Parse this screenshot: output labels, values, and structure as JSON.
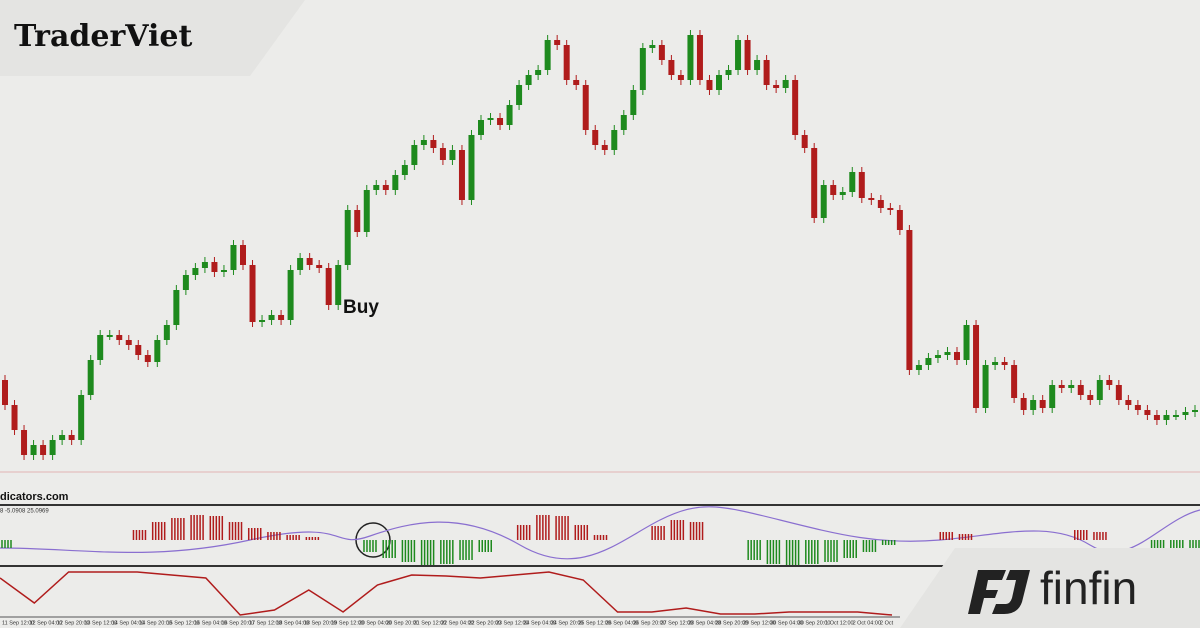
{
  "brand": "TraderViet",
  "logo": "finfin",
  "chart_data": {
    "type": "candlestick",
    "annotation": "Buy",
    "watermark": "dicators.com",
    "indicator_label": "8 -5.0908 25.0969",
    "up_color": "#1e8a1e",
    "down_color": "#b01c1c",
    "ylim": [
      0,
      500
    ],
    "open": [
      120,
      95,
      70,
      45,
      55,
      45,
      60,
      65,
      60,
      105,
      140,
      165,
      165,
      160,
      155,
      145,
      138,
      160,
      175,
      210,
      225,
      232,
      238,
      228,
      230,
      255,
      235,
      178,
      180,
      185,
      180,
      230,
      242,
      235,
      232,
      195,
      235,
      290,
      268,
      310,
      315,
      310,
      325,
      335,
      355,
      360,
      352,
      340,
      350,
      300,
      365,
      380,
      382,
      375,
      395,
      415,
      425,
      430,
      460,
      455,
      420,
      415,
      370,
      355,
      350,
      370,
      385,
      410,
      452,
      455,
      440,
      425,
      420,
      465,
      420,
      410,
      425,
      430,
      460,
      430,
      440,
      415,
      412,
      420,
      365,
      352,
      282,
      315,
      305,
      308,
      328,
      302,
      300,
      292,
      290,
      270,
      130,
      135,
      142,
      145,
      148,
      140,
      175,
      92,
      135,
      138,
      135,
      102,
      90,
      100,
      92,
      115,
      112,
      115,
      105,
      100,
      120,
      115,
      100,
      95,
      90,
      85,
      80,
      85,
      85,
      88
    ],
    "close": [
      95,
      70,
      45,
      55,
      45,
      60,
      65,
      60,
      105,
      140,
      165,
      165,
      160,
      155,
      145,
      138,
      160,
      175,
      210,
      225,
      232,
      238,
      228,
      230,
      255,
      235,
      178,
      180,
      185,
      180,
      230,
      242,
      235,
      232,
      195,
      235,
      290,
      268,
      310,
      315,
      310,
      325,
      335,
      355,
      360,
      352,
      340,
      350,
      300,
      365,
      380,
      382,
      375,
      395,
      415,
      425,
      430,
      460,
      455,
      420,
      415,
      370,
      355,
      350,
      370,
      385,
      410,
      452,
      455,
      440,
      425,
      420,
      465,
      420,
      410,
      425,
      430,
      460,
      430,
      440,
      415,
      412,
      420,
      365,
      352,
      282,
      315,
      305,
      308,
      328,
      302,
      300,
      292,
      290,
      270,
      130,
      135,
      142,
      145,
      148,
      140,
      175,
      92,
      135,
      138,
      135,
      102,
      90,
      100,
      92,
      115,
      112,
      115,
      105,
      100,
      120,
      115,
      100,
      95,
      90,
      85,
      80,
      85,
      85,
      88,
      90
    ],
    "histogram": {
      "ylim": [
        -30,
        30
      ],
      "positive_color": "#b01c1c",
      "negative_color": "#1e8a1e",
      "values": [
        -8,
        0,
        0,
        0,
        0,
        0,
        0,
        10,
        18,
        22,
        25,
        24,
        18,
        12,
        8,
        5,
        3,
        0,
        0,
        -12,
        -18,
        -22,
        -25,
        -24,
        -20,
        -12,
        0,
        15,
        25,
        24,
        15,
        5,
        0,
        0,
        14,
        20,
        18,
        0,
        0,
        -20,
        -24,
        -25,
        -24,
        -22,
        -18,
        -12,
        -5,
        0,
        0,
        8,
        6,
        0,
        0,
        0,
        0,
        0,
        10,
        8,
        0,
        0,
        -15,
        -20,
        -22
      ]
    },
    "oscillator": {
      "ylim": [
        0,
        45
      ],
      "color": "#b01c1c",
      "values": [
        37,
        12,
        43,
        43,
        43,
        40,
        37,
        0,
        5,
        25,
        3,
        30,
        40,
        39,
        37,
        40,
        43,
        35,
        3,
        3,
        7,
        1,
        1,
        3,
        3,
        3,
        0
      ]
    },
    "categories": [
      "11 Sep 12:00",
      "12 Sep 04:00",
      "12 Sep 20:00",
      "13 Sep 12:00",
      "14 Sep 04:00",
      "14 Sep 20:00",
      "15 Sep 12:00",
      "16 Sep 04:00",
      "16 Sep 20:00",
      "17 Sep 12:00",
      "18 Sep 04:00",
      "18 Sep 20:00",
      "19 Sep 12:00",
      "20 Sep 04:00",
      "20 Sep 20:00",
      "21 Sep 12:00",
      "22 Sep 04:00",
      "22 Sep 20:00",
      "23 Sep 12:00",
      "24 Sep 04:00",
      "24 Sep 20:00",
      "25 Sep 12:00",
      "26 Sep 04:00",
      "26 Sep 20:00",
      "27 Sep 12:00",
      "28 Sep 04:00",
      "28 Sep 20:00",
      "29 Sep 12:00",
      "30 Sep 04:00",
      "30 Sep 20:00",
      "1 Oct 12:00",
      "2 Oct 04:00",
      "2 Oct"
    ]
  }
}
